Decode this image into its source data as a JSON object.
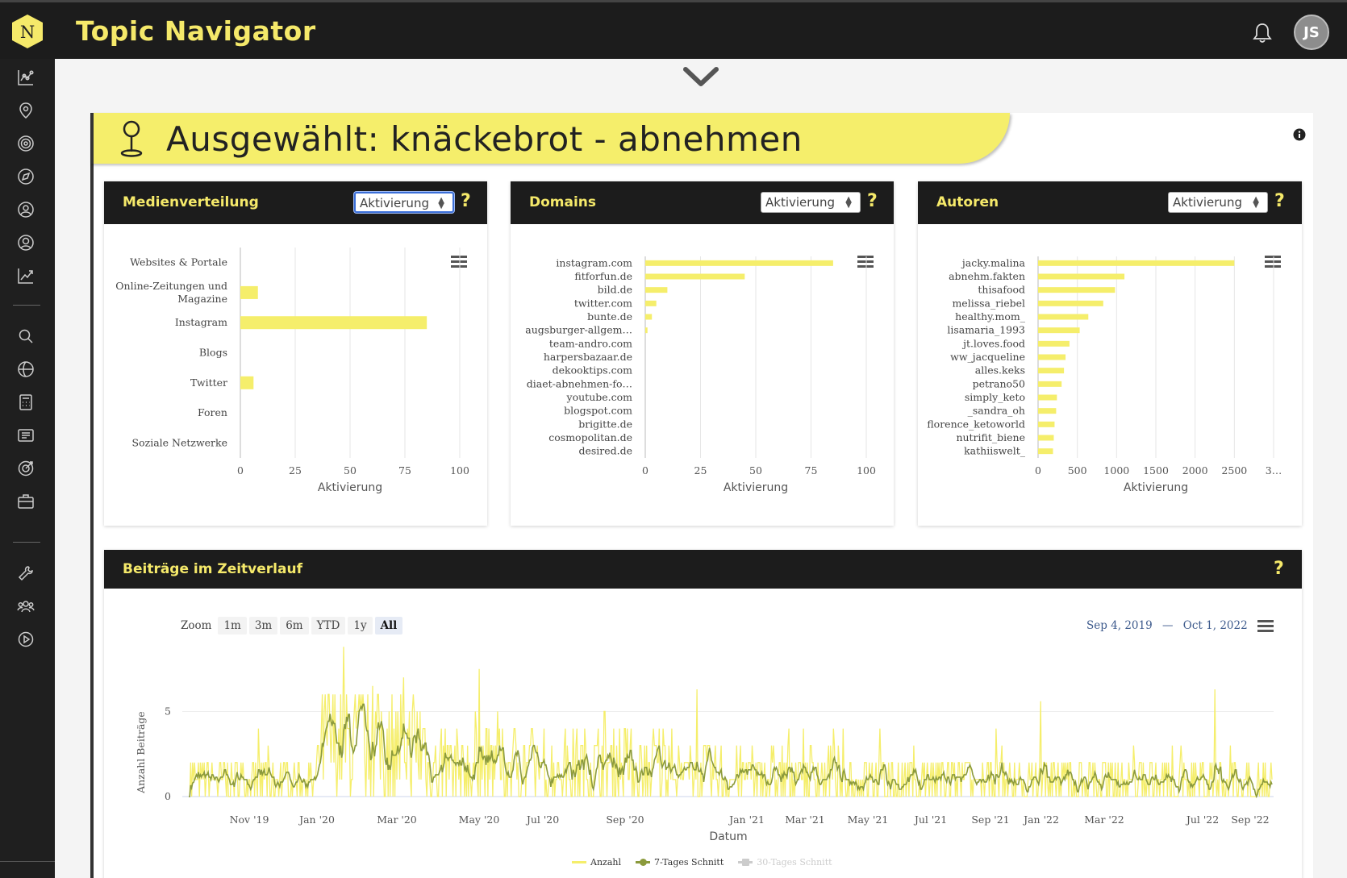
{
  "app": {
    "title": "Topic Navigator",
    "logo_letter": "N",
    "user_initials": "JS",
    "accent_color": "#f5e96a",
    "dark_color": "#1c1c1c"
  },
  "sidebar": {
    "icons": [
      "chart-nodes-icon",
      "location-pin-icon",
      "target-icon",
      "compass-icon",
      "user-search-icon",
      "user-circle-icon",
      "trend-chart-icon",
      "search-icon",
      "globe-icon",
      "calculator-icon",
      "newspaper-icon",
      "goal-icon",
      "briefcase-icon",
      "wrench-icon",
      "team-icon",
      "play-icon"
    ]
  },
  "banner": {
    "title": "Ausgewählt: knäckebrot - abnehmen"
  },
  "panels": {
    "medien": {
      "title": "Medienverteilung",
      "select_value": "Aktivierung",
      "help": "?",
      "chart_data": {
        "type": "bar",
        "orientation": "horizontal",
        "categories": [
          "Websites & Portale",
          "Online-Zeitungen und Magazine",
          "Instagram",
          "Blogs",
          "Twitter",
          "Foren",
          "Soziale Netzwerke"
        ],
        "values": [
          0,
          8,
          85,
          0,
          6,
          0,
          0
        ],
        "xlabel": "Aktivierung",
        "xlim": [
          0,
          100
        ],
        "ticks": [
          "0",
          "25",
          "50",
          "75",
          "100"
        ],
        "color": "#f5ee6b"
      }
    },
    "domains": {
      "title": "Domains",
      "select_value": "Aktivierung",
      "help": "?",
      "chart_data": {
        "type": "bar",
        "orientation": "horizontal",
        "categories": [
          "instagram.com",
          "fitforfun.de",
          "bild.de",
          "twitter.com",
          "bunte.de",
          "augsburger-allgem…",
          "team-andro.com",
          "harpersbazaar.de",
          "dekooktips.com",
          "diaet-abnehmen-fo…",
          "youtube.com",
          "blogspot.com",
          "brigitte.de",
          "cosmopolitan.de",
          "desired.de"
        ],
        "values": [
          85,
          45,
          10,
          5,
          3,
          1,
          0,
          0,
          0,
          0,
          0,
          0,
          0,
          0,
          0
        ],
        "xlabel": "Aktivierung",
        "xlim": [
          0,
          100
        ],
        "ticks": [
          "0",
          "25",
          "50",
          "75",
          "100"
        ],
        "color": "#f5ee6b"
      }
    },
    "autoren": {
      "title": "Autoren",
      "select_value": "Aktivierung",
      "help": "?",
      "chart_data": {
        "type": "bar",
        "orientation": "horizontal",
        "categories": [
          "jacky.malina",
          "abnehm.fakten",
          "thisafood",
          "melissa_riebel",
          "healthy.mom_",
          "lisamaria_1993",
          "jt.loves.food",
          "ww_jacqueline",
          "alles.keks",
          "petrano50",
          "simply_keto",
          "_sandra_oh",
          "florence_ketoworld",
          "nutrifit_biene",
          "kathiiswelt_"
        ],
        "values": [
          2500,
          1100,
          980,
          830,
          640,
          530,
          400,
          350,
          330,
          300,
          240,
          230,
          210,
          200,
          190
        ],
        "xlabel": "Aktivierung",
        "xlim": [
          0,
          3000
        ],
        "ticks": [
          "0",
          "500",
          "1000",
          "1500",
          "2000",
          "2500",
          "3…"
        ],
        "color": "#f5ee6b"
      }
    },
    "timeline": {
      "title": "Beiträge im Zeitverlauf",
      "help": "?",
      "zoom_label": "Zoom",
      "zoom_options": [
        "1m",
        "3m",
        "6m",
        "YTD",
        "1y",
        "All"
      ],
      "zoom_selected": "All",
      "date_from": "Sep 4, 2019",
      "date_sep": "—",
      "date_to": "Oct 1, 2022",
      "chart_data": {
        "type": "line",
        "xlabel": "Datum",
        "ylabel": "Anzahl Beiträge",
        "y_ticks": [
          "0",
          "5"
        ],
        "ylim": [
          0,
          9
        ],
        "x_ticks": [
          "Nov '19",
          "Jan '20",
          "Mar '20",
          "May '20",
          "Jul '20",
          "Sep '20",
          "Jan '21",
          "Mar '21",
          "May '21",
          "Jul '21",
          "Sep '21",
          "Jan '22",
          "Mar '22",
          "Jul '22",
          "Sep '22"
        ],
        "x_range": [
          "Sep 4, 2019",
          "Oct 1, 2022"
        ],
        "series": [
          {
            "name": "Anzahl",
            "color": "#f5ee6b"
          },
          {
            "name": "7-Tages Schnitt",
            "color": "#8b9a3c"
          },
          {
            "name": "30-Tages Schnitt",
            "color": "#cccccc",
            "hidden": true
          }
        ],
        "peaks": [
          {
            "date": "Jan '20",
            "value": 8.8
          },
          {
            "date": "Feb '20",
            "value": 6.5
          },
          {
            "date": "Jun '20",
            "value": 7.5
          },
          {
            "date": "Jan '21",
            "value": 6.3
          },
          {
            "date": "Jan '22",
            "value": 5.6
          },
          {
            "date": "Aug '22",
            "value": 6.3
          }
        ]
      }
    }
  }
}
